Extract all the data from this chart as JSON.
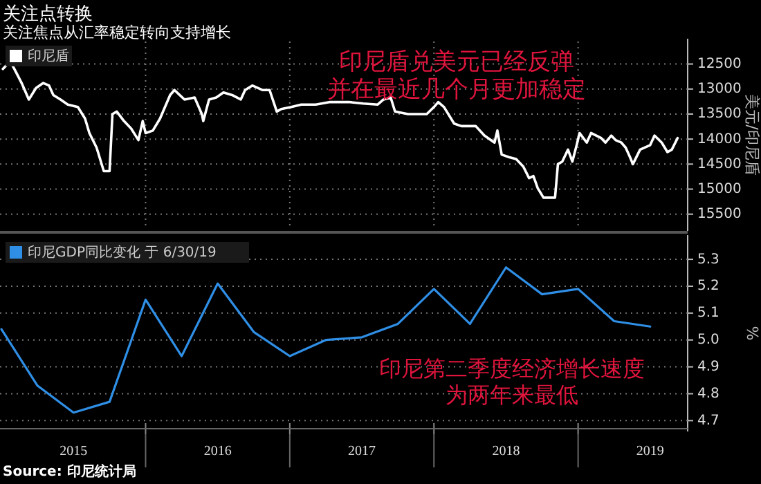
{
  "chart_data": [
    {
      "type": "line",
      "title": "关注点转换",
      "subtitle": "关注焦点从汇率稳定转向支持增长",
      "ylabel": "美元/印尼盾",
      "annotations": [
        "印尼盾兑美元已经反弹",
        "并在最近几个月更加稳定"
      ],
      "xlim": [
        2014.99,
        2019.76
      ],
      "xticks": [
        {
          "value": 2016,
          "label": null
        },
        {
          "value": 2017,
          "label": null
        },
        {
          "value": 2018,
          "label": null
        },
        {
          "value": 2019,
          "label": null
        }
      ],
      "ylim": [
        15780,
        12050
      ],
      "yticks": [
        12500,
        13000,
        13500,
        14000,
        14500,
        15000,
        15500
      ],
      "tick_labels": "y",
      "grid": true,
      "legend": "top left",
      "series": [
        {
          "name": "印尼盾",
          "color": "#ffffff",
          "x": [
            2015.01,
            2015.06,
            2015.09,
            2015.14,
            2015.19,
            2015.24,
            2015.29,
            2015.33,
            2015.36,
            2015.41,
            2015.46,
            2015.53,
            2015.58,
            2015.61,
            2015.66,
            2015.71,
            2015.75,
            2015.77,
            2015.8,
            2015.85,
            2015.9,
            2015.95,
            2015.98,
            2016.0,
            2016.05,
            2016.1,
            2016.17,
            2016.2,
            2016.27,
            2016.34,
            2016.39,
            2016.4,
            2016.44,
            2016.49,
            2016.54,
            2016.6,
            2016.66,
            2016.69,
            2016.74,
            2016.81,
            2016.86,
            2016.91,
            2016.94,
            2017.01,
            2017.08,
            2017.18,
            2017.28,
            2017.34,
            2017.41,
            2017.51,
            2017.61,
            2017.65,
            2017.7,
            2017.73,
            2017.82,
            2017.88,
            2017.95,
            2018.0,
            2018.03,
            2018.07,
            2018.14,
            2018.19,
            2018.29,
            2018.35,
            2018.42,
            2018.44,
            2018.47,
            2018.52,
            2018.57,
            2018.62,
            2018.66,
            2018.69,
            2018.72,
            2018.76,
            2018.81,
            2018.84,
            2018.86,
            2018.89,
            2018.93,
            2018.96,
            2018.99,
            2019.01,
            2019.06,
            2019.09,
            2019.16,
            2019.19,
            2019.23,
            2019.26,
            2019.3,
            2019.33,
            2019.36,
            2019.38,
            2019.43,
            2019.5,
            2019.53,
            2019.58,
            2019.62,
            2019.65,
            2019.69
          ],
          "values": [
            12600,
            12450,
            12600,
            12880,
            13210,
            12980,
            12880,
            12930,
            13120,
            13210,
            13310,
            13360,
            13590,
            13880,
            14170,
            14640,
            14640,
            13500,
            13450,
            13640,
            13790,
            14020,
            13640,
            13880,
            13830,
            13590,
            13120,
            13020,
            13210,
            13170,
            13500,
            13640,
            13210,
            13170,
            13070,
            13120,
            13210,
            13020,
            12930,
            13020,
            13020,
            13450,
            13400,
            13360,
            13310,
            13310,
            13260,
            13260,
            13260,
            13290,
            13310,
            13210,
            13170,
            13450,
            13500,
            13500,
            13500,
            13360,
            13260,
            13360,
            13690,
            13740,
            13740,
            13930,
            14070,
            13830,
            14310,
            14360,
            14400,
            14550,
            14780,
            14740,
            14980,
            15170,
            15170,
            15170,
            14500,
            14450,
            14210,
            14450,
            14120,
            13880,
            14070,
            13880,
            13980,
            14070,
            13930,
            14020,
            14070,
            14170,
            14360,
            14500,
            14210,
            14120,
            13930,
            14070,
            14260,
            14210,
            13980
          ]
        }
      ]
    },
    {
      "type": "line",
      "ylabel": "%",
      "annotations": [
        "印尼第二季度经济增长速度",
        "为两年来最低",
        "Source: 印尼统计局"
      ],
      "xlim": [
        2014.99,
        2019.76
      ],
      "xticks": [
        {
          "value": 2016,
          "label": null
        },
        {
          "value": 2017,
          "label": null
        },
        {
          "value": 2018,
          "label": null
        },
        {
          "value": 2019,
          "label": null
        },
        {
          "value": 2015.5,
          "label": "2015"
        },
        {
          "value": 2016.5,
          "label": "2016"
        },
        {
          "value": 2017.5,
          "label": "2017"
        },
        {
          "value": 2018.5,
          "label": "2018"
        },
        {
          "value": 2019.5,
          "label": "2019"
        }
      ],
      "ylim": [
        4.67,
        5.38
      ],
      "yticks": [
        4.7,
        4.8,
        4.9,
        {
          "value": 5,
          "label": "5.0"
        },
        5.1,
        5.2,
        5.3
      ],
      "grid": "y",
      "legend": "top left",
      "series": [
        {
          "name": "印尼GDP同比变化 于 6/30/19",
          "color": "#2f8fe6",
          "x": [
            2015.0,
            2015.25,
            2015.5,
            2015.75,
            2016.0,
            2016.25,
            2016.5,
            2016.75,
            2017.0,
            2017.25,
            2017.5,
            2017.75,
            2018.0,
            2018.25,
            2018.5,
            2018.75,
            2019.0,
            2019.25,
            2019.5
          ],
          "values": [
            5.04,
            4.83,
            4.73,
            4.77,
            5.15,
            4.94,
            5.21,
            5.03,
            4.94,
            5.0,
            5.01,
            5.06,
            5.19,
            5.06,
            5.27,
            5.17,
            5.19,
            5.07,
            5.05
          ]
        }
      ]
    }
  ]
}
